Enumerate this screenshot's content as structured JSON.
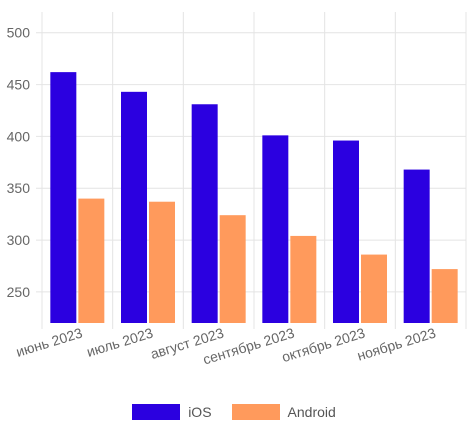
{
  "chart_data": {
    "type": "bar",
    "categories": [
      "июнь 2023",
      "июль 2023",
      "август 2023",
      "сентябрь 2023",
      "октябрь 2023",
      "ноябрь 2023"
    ],
    "series": [
      {
        "name": "iOS",
        "color": "#2b00e0",
        "values": [
          462,
          443,
          431,
          401,
          396,
          368
        ]
      },
      {
        "name": "Android",
        "color": "#ff9a5c",
        "values": [
          340,
          337,
          324,
          304,
          286,
          272
        ]
      }
    ],
    "y_ticks": [
      "250",
      "300",
      "350",
      "400",
      "450",
      "500"
    ],
    "ylim": [
      220,
      520
    ],
    "grid": true,
    "legend_position": "bottom"
  }
}
